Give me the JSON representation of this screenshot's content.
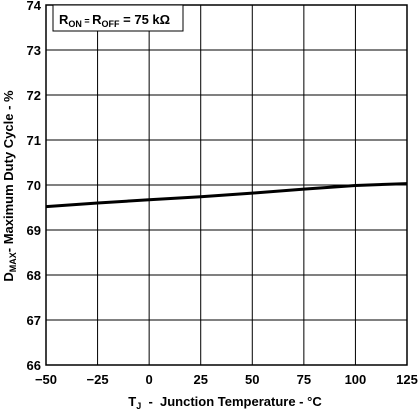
{
  "chart_data": {
    "type": "line",
    "annotation": {
      "r_on_main": "R",
      "r_on_sub": "ON",
      "r_off_main": "R",
      "r_off_sub": "OFF",
      "eq": " = ",
      "value": " = 75 kΩ"
    },
    "xlabel": {
      "main": "T",
      "sub": "J",
      "rest": "  -  Junction Temperature - °C"
    },
    "ylabel": {
      "main": "D",
      "sub": "MAX",
      "rest": "- Maximum Duty Cycle - %"
    },
    "xlim": [
      -50,
      125
    ],
    "ylim": [
      66,
      74
    ],
    "x_ticks": [
      "−50",
      "−25",
      "0",
      "25",
      "50",
      "75",
      "100",
      "125"
    ],
    "x_tick_values": [
      -50,
      -25,
      0,
      25,
      50,
      75,
      100,
      125
    ],
    "y_ticks": [
      "66",
      "67",
      "68",
      "69",
      "70",
      "71",
      "72",
      "73",
      "74"
    ],
    "y_tick_values": [
      66,
      67,
      68,
      69,
      70,
      71,
      72,
      73,
      74
    ],
    "grid": true,
    "series": [
      {
        "x": [
          -50,
          -25,
          0,
          25,
          50,
          75,
          100,
          125
        ],
        "y": [
          69.52,
          69.6,
          69.67,
          69.74,
          69.82,
          69.91,
          69.99,
          70.03
        ]
      }
    ],
    "line_color": "#000000"
  }
}
